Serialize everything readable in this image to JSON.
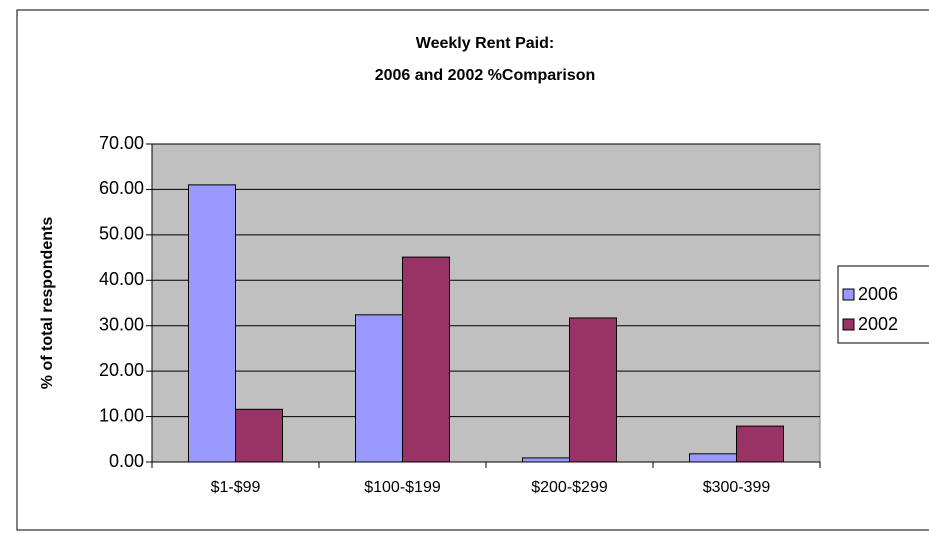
{
  "chart_data": {
    "type": "bar",
    "title_lines": [
      "Weekly Rent Paid:",
      "2006 and 2002 %Comparison"
    ],
    "ylabel": "% of total respondents",
    "categories": [
      "$1-$99",
      "$100-$199",
      "$200-$299",
      "$300-399"
    ],
    "series": [
      {
        "name": "2006",
        "color": "#9999ff",
        "values": [
          61.0,
          32.4,
          0.9,
          1.8
        ]
      },
      {
        "name": "2002",
        "color": "#993366",
        "values": [
          11.6,
          45.1,
          31.7,
          7.9
        ]
      }
    ],
    "ylim": [
      0,
      70
    ],
    "yticks": [
      {
        "value": 0,
        "label": "0.00"
      },
      {
        "value": 10,
        "label": "10.00"
      },
      {
        "value": 20,
        "label": "20.00"
      },
      {
        "value": 30,
        "label": "30.00"
      },
      {
        "value": 40,
        "label": "40.00"
      },
      {
        "value": 50,
        "label": "50.00"
      },
      {
        "value": 60,
        "label": "60.00"
      },
      {
        "value": 70,
        "label": "70.00"
      }
    ],
    "grid": true,
    "legend": "right",
    "plot_background": "#c0c0c0"
  }
}
